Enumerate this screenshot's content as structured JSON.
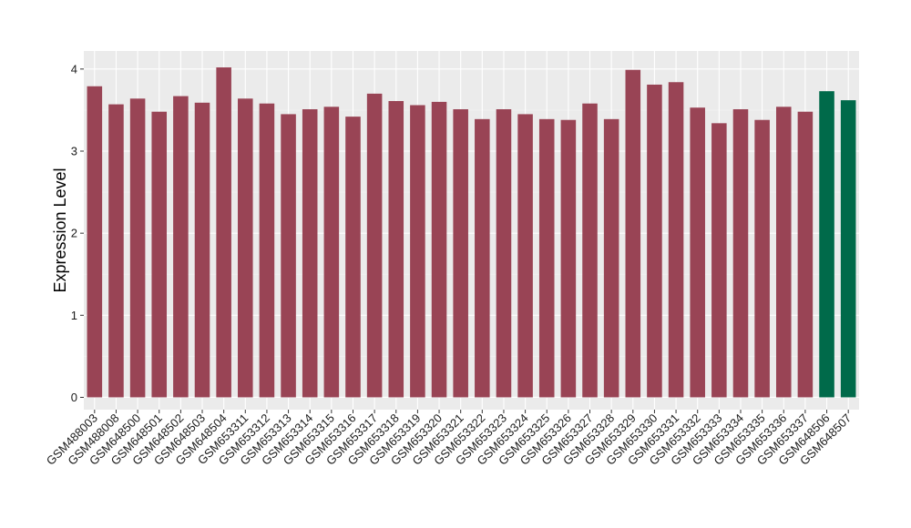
{
  "chart_data": {
    "type": "bar",
    "xlabel": "",
    "ylabel": "Expression Level",
    "ylim": [
      -0.15,
      4.22
    ],
    "yticks": [
      0,
      1,
      2,
      3,
      4
    ],
    "grid": true,
    "background": "#ebebeb",
    "categories": [
      "GSM488003",
      "GSM488008",
      "GSM648500",
      "GSM648501",
      "GSM648502",
      "GSM648503",
      "GSM648504",
      "GSM653311",
      "GSM653312",
      "GSM653313",
      "GSM653314",
      "GSM653315",
      "GSM653316",
      "GSM653317",
      "GSM653318",
      "GSM653319",
      "GSM653320",
      "GSM653321",
      "GSM653322",
      "GSM653323",
      "GSM653324",
      "GSM653325",
      "GSM653326",
      "GSM653327",
      "GSM653328",
      "GSM653329",
      "GSM653330",
      "GSM653331",
      "GSM653332",
      "GSM653333",
      "GSM653334",
      "GSM653335",
      "GSM653336",
      "GSM653337",
      "GSM648506",
      "GSM648507"
    ],
    "values": [
      3.79,
      3.57,
      3.64,
      3.48,
      3.67,
      3.59,
      4.02,
      3.64,
      3.58,
      3.45,
      3.51,
      3.54,
      3.42,
      3.7,
      3.61,
      3.56,
      3.6,
      3.51,
      3.39,
      3.51,
      3.45,
      3.39,
      3.38,
      3.58,
      3.39,
      3.99,
      3.81,
      3.84,
      3.53,
      3.34,
      3.51,
      3.38,
      3.54,
      3.48,
      3.73,
      3.62
    ],
    "colors": [
      "#994455",
      "#994455",
      "#994455",
      "#994455",
      "#994455",
      "#994455",
      "#994455",
      "#994455",
      "#994455",
      "#994455",
      "#994455",
      "#994455",
      "#994455",
      "#994455",
      "#994455",
      "#994455",
      "#994455",
      "#994455",
      "#994455",
      "#994455",
      "#994455",
      "#994455",
      "#994455",
      "#994455",
      "#994455",
      "#994455",
      "#994455",
      "#994455",
      "#994455",
      "#994455",
      "#994455",
      "#994455",
      "#994455",
      "#994455",
      "#006a4a",
      "#006a4a"
    ]
  }
}
